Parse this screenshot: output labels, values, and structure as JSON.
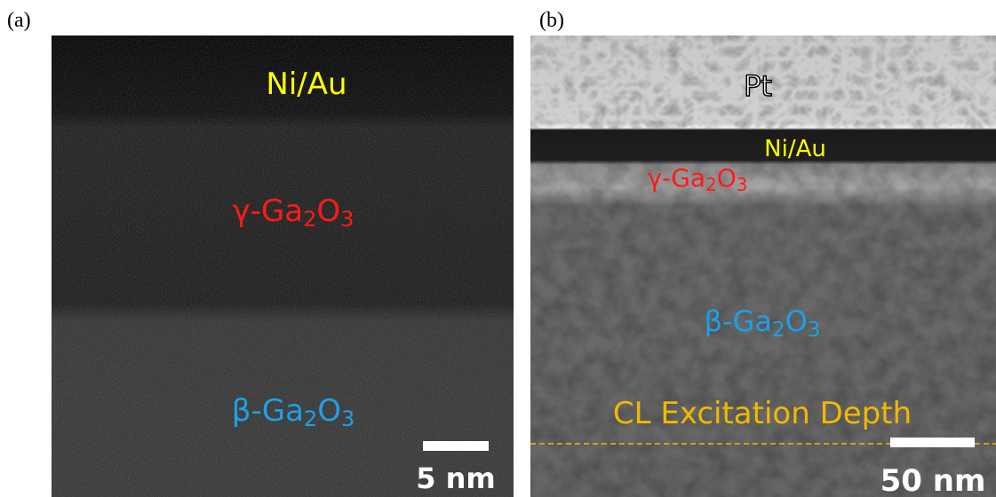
{
  "panels": [
    {
      "label": "(a)",
      "annotations": [
        {
          "segments": [
            "Ni/Au"
          ]
        },
        {
          "segments": [
            "γ-Ga",
            "2",
            "O",
            "3"
          ]
        },
        {
          "segments": [
            "β-Ga",
            "2",
            "O",
            "3"
          ]
        }
      ],
      "scale_bar": "5 nm"
    },
    {
      "label": "(b)",
      "annotations": [
        {
          "segments": [
            "Pt"
          ]
        },
        {
          "segments": [
            "Ni/Au"
          ]
        },
        {
          "segments": [
            "γ-Ga",
            "2",
            "O",
            "3"
          ]
        },
        {
          "segments": [
            "β-Ga",
            "2",
            "O",
            "3"
          ]
        },
        {
          "segments": [
            "CL Excitation Depth"
          ]
        }
      ],
      "scale_bar": "50 nm"
    }
  ]
}
